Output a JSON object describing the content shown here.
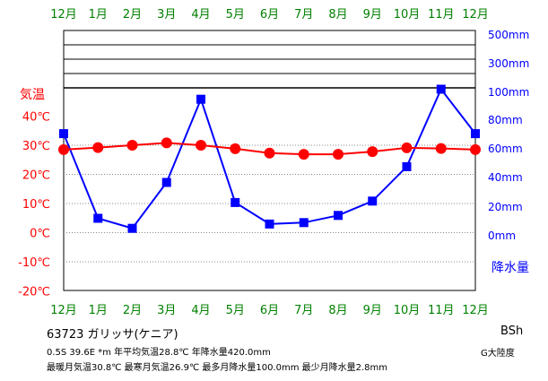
{
  "chart_data": {
    "type": "line",
    "x": [
      "12月",
      "1月",
      "2月",
      "3月",
      "4月",
      "5月",
      "6月",
      "7月",
      "8月",
      "9月",
      "10月",
      "11月",
      "12月"
    ],
    "series": [
      {
        "kind": "temperature",
        "color": "#ff0000",
        "values": [
          28.5,
          29.2,
          30.0,
          30.8,
          30.0,
          28.8,
          27.3,
          26.9,
          26.9,
          27.8,
          29.1,
          28.9,
          28.5
        ]
      },
      {
        "kind": "precipitation",
        "color": "#0000ff",
        "values": [
          69,
          10,
          3,
          35,
          93,
          21,
          6,
          7,
          12,
          22,
          46,
          100,
          69
        ]
      }
    ],
    "left_axis": {
      "label": "気温",
      "ticks": [
        "40℃",
        "30℃",
        "20℃",
        "10℃",
        "0℃",
        "-10℃",
        "-20℃"
      ],
      "values": [
        40,
        30,
        20,
        10,
        0,
        -10,
        -20
      ],
      "color": "#ff0000"
    },
    "right_axis": {
      "label": "降水量",
      "ticks": [
        "500mm",
        "300mm",
        "100mm",
        "80mm",
        "60mm",
        "40mm",
        "20mm",
        "0mm"
      ],
      "color": "#0000ff"
    },
    "month_label_color": "#008000"
  },
  "info": {
    "station": "63723  ガリッサ(ケニア)",
    "climate": "BSh",
    "continent": "G大陸度",
    "line1": "0.5S  39.6E  *m  年平均気温28.8℃ 年降水量420.0mm",
    "line2": "最暖月気温30.8℃ 最寒月気温26.9℃ 最多月降水量100.0mm 最少月降水量2.8mm"
  }
}
